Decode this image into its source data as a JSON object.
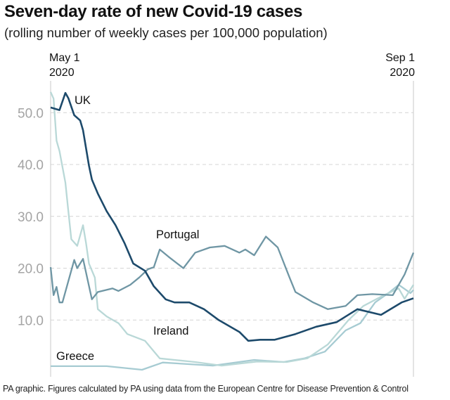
{
  "title": "Seven-day rate of new Covid-19 cases",
  "subtitle": "(rolling number of weekly cases per 100,000 population)",
  "footer": "PA graphic. Figures calculated by PA using data from the European Centre for Disease Prevention & Control",
  "chart_data": {
    "type": "line",
    "title": "Seven-day rate of new Covid-19 cases",
    "subtitle": "(rolling number of weekly cases per 100,000 population)",
    "xlim": [
      "2020-05-01",
      "2020-09-01"
    ],
    "x_ticks": [
      {
        "line1": "May 1",
        "line2": "2020"
      },
      {
        "line1": "Sep 1",
        "line2": "2020"
      }
    ],
    "ylim": [
      0,
      55
    ],
    "y_ticks": [
      "10.0",
      "20.0",
      "30.0",
      "40.0",
      "50.0"
    ],
    "y_tick_values": [
      10,
      20,
      30,
      40,
      50
    ],
    "grid": "horizontal dashed",
    "legend": "direct labels",
    "series": [
      {
        "name": "UK",
        "color": "#1d4a6b",
        "points": [
          [
            "2020-05-01",
            51.0
          ],
          [
            "2020-05-04",
            50.5
          ],
          [
            "2020-05-06",
            53.8
          ],
          [
            "2020-05-07",
            52.8
          ],
          [
            "2020-05-09",
            49.5
          ],
          [
            "2020-05-11",
            48.5
          ],
          [
            "2020-05-12",
            46.6
          ],
          [
            "2020-05-14",
            39.8
          ],
          [
            "2020-05-15",
            37.1
          ],
          [
            "2020-05-17",
            34.4
          ],
          [
            "2020-05-20",
            31.0
          ],
          [
            "2020-05-23",
            28.3
          ],
          [
            "2020-05-26",
            24.9
          ],
          [
            "2020-05-29",
            20.9
          ],
          [
            "2020-06-02",
            19.5
          ],
          [
            "2020-06-05",
            16.5
          ],
          [
            "2020-06-09",
            14.0
          ],
          [
            "2020-06-12",
            13.4
          ],
          [
            "2020-06-17",
            13.4
          ],
          [
            "2020-06-22",
            12.1
          ],
          [
            "2020-06-27",
            10.0
          ],
          [
            "2020-07-04",
            7.7
          ],
          [
            "2020-07-07",
            6.0
          ],
          [
            "2020-07-11",
            6.2
          ],
          [
            "2020-07-16",
            6.2
          ],
          [
            "2020-07-23",
            7.3
          ],
          [
            "2020-07-30",
            8.7
          ],
          [
            "2020-08-06",
            9.6
          ],
          [
            "2020-08-13",
            12.1
          ],
          [
            "2020-08-21",
            11.0
          ],
          [
            "2020-08-28",
            13.4
          ],
          [
            "2020-09-01",
            14.2
          ]
        ]
      },
      {
        "name": "Portugal",
        "color": "#6f96a4",
        "points": [
          [
            "2020-05-01",
            20.2
          ],
          [
            "2020-05-02",
            14.8
          ],
          [
            "2020-05-03",
            16.4
          ],
          [
            "2020-05-04",
            13.4
          ],
          [
            "2020-05-05",
            13.4
          ],
          [
            "2020-05-09",
            21.6
          ],
          [
            "2020-05-10",
            20.0
          ],
          [
            "2020-05-12",
            21.8
          ],
          [
            "2020-05-15",
            14.0
          ],
          [
            "2020-05-17",
            15.4
          ],
          [
            "2020-05-22",
            16.1
          ],
          [
            "2020-05-24",
            15.6
          ],
          [
            "2020-05-28",
            16.8
          ],
          [
            "2020-05-31",
            18.2
          ],
          [
            "2020-06-03",
            19.8
          ],
          [
            "2020-06-05",
            20.2
          ],
          [
            "2020-06-07",
            23.6
          ],
          [
            "2020-06-10",
            22.2
          ],
          [
            "2020-06-15",
            20.0
          ],
          [
            "2020-06-19",
            23.0
          ],
          [
            "2020-06-24",
            24.0
          ],
          [
            "2020-06-29",
            24.3
          ],
          [
            "2020-07-04",
            23.0
          ],
          [
            "2020-07-06",
            23.6
          ],
          [
            "2020-07-09",
            22.5
          ],
          [
            "2020-07-13",
            26.1
          ],
          [
            "2020-07-17",
            24.0
          ],
          [
            "2020-07-21",
            18.2
          ],
          [
            "2020-07-23",
            15.4
          ],
          [
            "2020-07-29",
            13.4
          ],
          [
            "2020-08-03",
            12.1
          ],
          [
            "2020-08-09",
            12.7
          ],
          [
            "2020-08-13",
            14.8
          ],
          [
            "2020-08-18",
            15.0
          ],
          [
            "2020-08-25",
            14.8
          ],
          [
            "2020-08-29",
            18.8
          ],
          [
            "2020-09-01",
            23.0
          ]
        ]
      },
      {
        "name": "Ireland",
        "color": "#b9d8d7",
        "points": [
          [
            "2020-05-01",
            54.0
          ],
          [
            "2020-05-02",
            52.7
          ],
          [
            "2020-05-03",
            44.6
          ],
          [
            "2020-05-04",
            42.6
          ],
          [
            "2020-05-06",
            36.5
          ],
          [
            "2020-05-07",
            31.0
          ],
          [
            "2020-05-08",
            25.6
          ],
          [
            "2020-05-10",
            24.3
          ],
          [
            "2020-05-12",
            28.3
          ],
          [
            "2020-05-13",
            24.9
          ],
          [
            "2020-05-14",
            20.9
          ],
          [
            "2020-05-16",
            18.2
          ],
          [
            "2020-05-17",
            12.1
          ],
          [
            "2020-05-20",
            10.7
          ],
          [
            "2020-05-24",
            9.4
          ],
          [
            "2020-05-27",
            7.3
          ],
          [
            "2020-06-02",
            6.0
          ],
          [
            "2020-06-07",
            2.6
          ],
          [
            "2020-06-12",
            2.3
          ],
          [
            "2020-06-19",
            1.9
          ],
          [
            "2020-06-28",
            1.2
          ],
          [
            "2020-07-10",
            2.0
          ],
          [
            "2020-07-20",
            1.9
          ],
          [
            "2020-07-27",
            2.6
          ],
          [
            "2020-08-03",
            5.3
          ],
          [
            "2020-08-10",
            10.0
          ],
          [
            "2020-08-15",
            12.7
          ],
          [
            "2020-08-22",
            14.8
          ],
          [
            "2020-08-27",
            16.1
          ],
          [
            "2020-08-29",
            14.1
          ],
          [
            "2020-09-01",
            16.8
          ]
        ]
      },
      {
        "name": "Greece",
        "color": "#a6cbd2",
        "points": [
          [
            "2020-05-01",
            1.1
          ],
          [
            "2020-05-20",
            1.1
          ],
          [
            "2020-06-01",
            0.4
          ],
          [
            "2020-06-08",
            1.8
          ],
          [
            "2020-06-25",
            1.2
          ],
          [
            "2020-07-09",
            2.3
          ],
          [
            "2020-07-19",
            1.9
          ],
          [
            "2020-07-26",
            2.6
          ],
          [
            "2020-08-02",
            3.9
          ],
          [
            "2020-08-09",
            8.0
          ],
          [
            "2020-08-14",
            9.4
          ],
          [
            "2020-08-19",
            13.4
          ],
          [
            "2020-08-24",
            15.4
          ],
          [
            "2020-08-27",
            16.8
          ],
          [
            "2020-08-31",
            15.2
          ],
          [
            "2020-09-01",
            15.8
          ]
        ]
      }
    ]
  }
}
